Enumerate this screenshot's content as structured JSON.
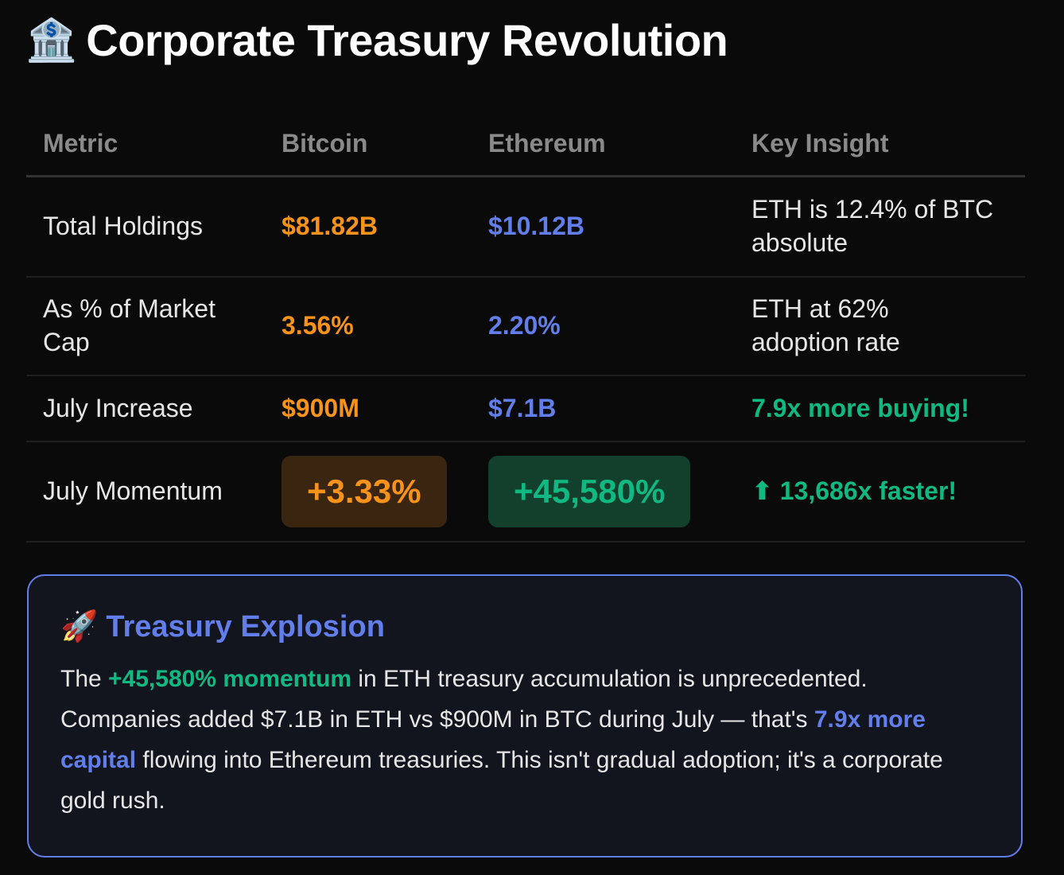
{
  "title": {
    "icon": "🏦",
    "text": "Corporate Treasury Revolution"
  },
  "table": {
    "headers": [
      "Metric",
      "Bitcoin",
      "Ethereum",
      "Key Insight"
    ],
    "rows": [
      {
        "metric": "Total Holdings",
        "btc": "$81.82B",
        "eth": "$10.12B",
        "insight": "ETH is 12.4% of BTC absolute"
      },
      {
        "metric": "As % of Market Cap",
        "btc": "3.56%",
        "eth": "2.20%",
        "insight": "ETH at 62% adoption rate"
      },
      {
        "metric": "July Increase",
        "btc": "$900M",
        "eth": "$7.1B",
        "insight": "7.9x more buying!"
      },
      {
        "metric": "July Momentum",
        "btc": "+3.33%",
        "eth": "+45,580%",
        "insight_icon": "⬆",
        "insight": "13,686x faster!"
      }
    ]
  },
  "callout": {
    "icon": "🚀",
    "title": "Treasury Explosion",
    "p1": "The ",
    "h1": "+45,580% momentum",
    "p2": " in ETH treasury accumulation is unprecedented. Companies added $7.1B in ETH vs $900M in BTC during July — that's ",
    "h2": "7.9x more capital",
    "p3": " flowing into Ethereum treasuries. This isn't gradual adoption; it's a corporate gold rush."
  },
  "colors": {
    "bitcoin": "#f7931a",
    "ethereum": "#627eea",
    "positive": "#10b981",
    "background": "#0a0a0a"
  }
}
